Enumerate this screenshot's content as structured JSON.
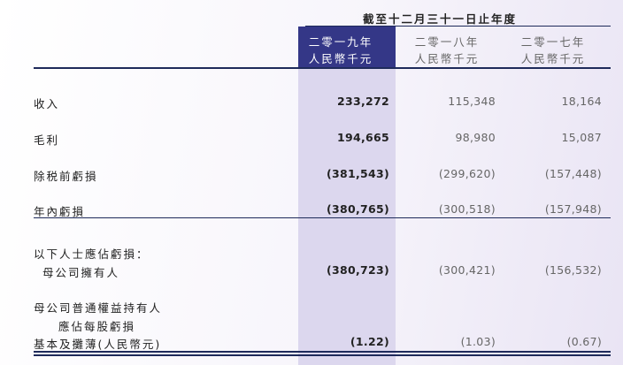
{
  "header": {
    "period": "截至十二月三十一日止年度"
  },
  "columns": [
    {
      "year": "二零一九年",
      "unit": "人民幣千元"
    },
    {
      "year": "二零一八年",
      "unit": "人民幣千元"
    },
    {
      "year": "二零一七年",
      "unit": "人民幣千元"
    }
  ],
  "rows": [
    {
      "label": "收入",
      "values": [
        "233,272",
        "115,348",
        "18,164"
      ]
    },
    {
      "label": "毛利",
      "values": [
        "194,665",
        "98,980",
        "15,087"
      ]
    },
    {
      "label": "除税前虧損",
      "values": [
        "(381,543)",
        "(299,620)",
        "(157,448)"
      ]
    },
    {
      "label": "年內虧損",
      "values": [
        "(380,765)",
        "(300,518)",
        "(157,948)"
      ]
    },
    {
      "label": "以下人士應佔虧損："
    },
    {
      "label": "母公司擁有人",
      "values": [
        "(380,723)",
        "(300,421)",
        "(156,532)"
      ]
    },
    {
      "label": "母公司普通權益持有人"
    },
    {
      "label": "應佔每股虧損"
    },
    {
      "label": "基本及攤薄(人民幣元)",
      "values": [
        "(1.22)",
        "(1.03)",
        "(0.67)"
      ]
    }
  ]
}
